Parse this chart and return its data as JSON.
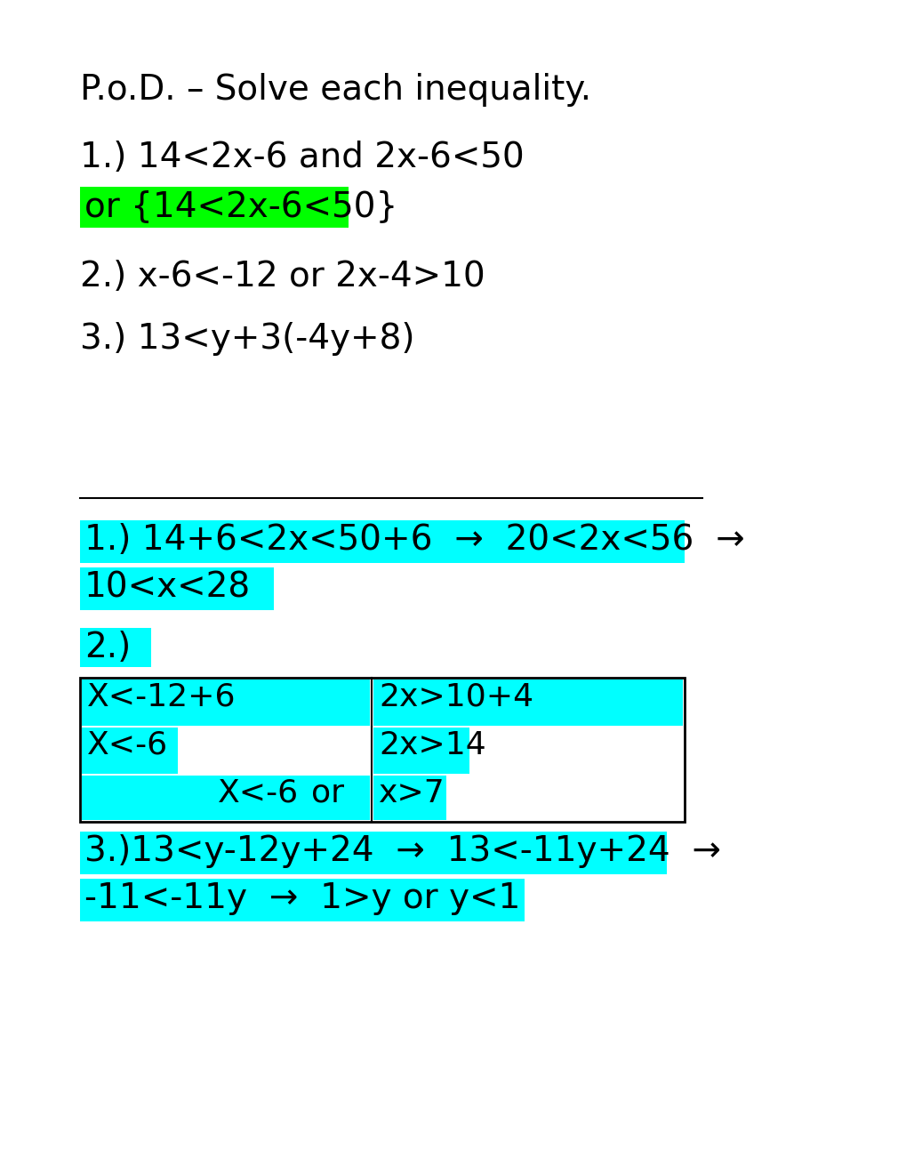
{
  "bg_color": "#ffffff",
  "cyan": "#00FFFF",
  "green": "#00FF00",
  "black": "#000000",
  "figsize": [
    10.2,
    13.2
  ],
  "dpi": 100,
  "pod_text": "P.o.D. – Solve each inequality.",
  "item1_text": "1.) 14<2x-6 and 2x-6<50",
  "item1b_text": "or {14<2x-6<50}",
  "item2_text": "2.) x-6<-12 or 2x-4>10",
  "item3_text": "3.) 13<y+3(-4y+8)",
  "ans1_line1": "1.) 14+6<2x<50+6  →  20<2x<56  →",
  "ans1_line2": "10<x<28",
  "ans2_label": "2.)",
  "box_left_line1": "X<-12+6",
  "box_left_line2": "X<-6",
  "box_left_line3": "X<-6",
  "box_right_line1": "2x>10+4",
  "box_right_line2": "2x>14",
  "box_right_line3": "x>7",
  "box_or": "or",
  "ans3_line1": "3.)13<y-12y+24  →  13<-11y+24  →",
  "ans3_line2": "-11<-11y  →  1>y or y<1"
}
